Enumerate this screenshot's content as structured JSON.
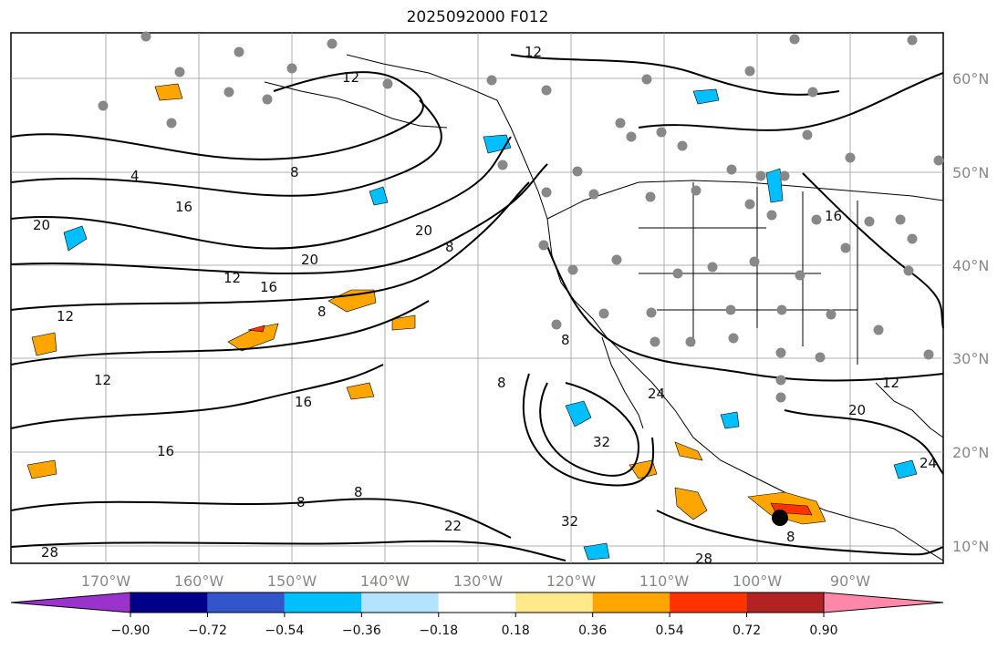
{
  "title": "2025092000 F012",
  "map": {
    "lon_labels": [
      "170°W",
      "160°W",
      "150°W",
      "140°W",
      "130°W",
      "120°W",
      "110°W",
      "100°W",
      "90°W"
    ],
    "lat_labels": [
      "60°N",
      "50°N",
      "40°N",
      "30°N",
      "20°N",
      "10°N"
    ],
    "contour_labels": [
      "12",
      "12",
      "8",
      "4",
      "16",
      "20",
      "20",
      "16",
      "12",
      "8",
      "8",
      "12",
      "16",
      "20",
      "8",
      "8",
      "16",
      "8",
      "12",
      "8",
      "24",
      "32",
      "32",
      "20",
      "12",
      "24",
      "28",
      "28",
      "8",
      "16",
      "22"
    ]
  },
  "colorbar": {
    "ticks": [
      "−0.90",
      "−0.72",
      "−0.54",
      "−0.36",
      "−0.18",
      "0.18",
      "0.36",
      "0.54",
      "0.72",
      "0.90"
    ],
    "colors": [
      "#9933cc",
      "#00008b",
      "#3355cc",
      "#00bfff",
      "#b3e3ff",
      "#ffffff",
      "#ffe98a",
      "#ffa500",
      "#ff3300",
      "#b22222",
      "#ff88aa"
    ]
  }
}
